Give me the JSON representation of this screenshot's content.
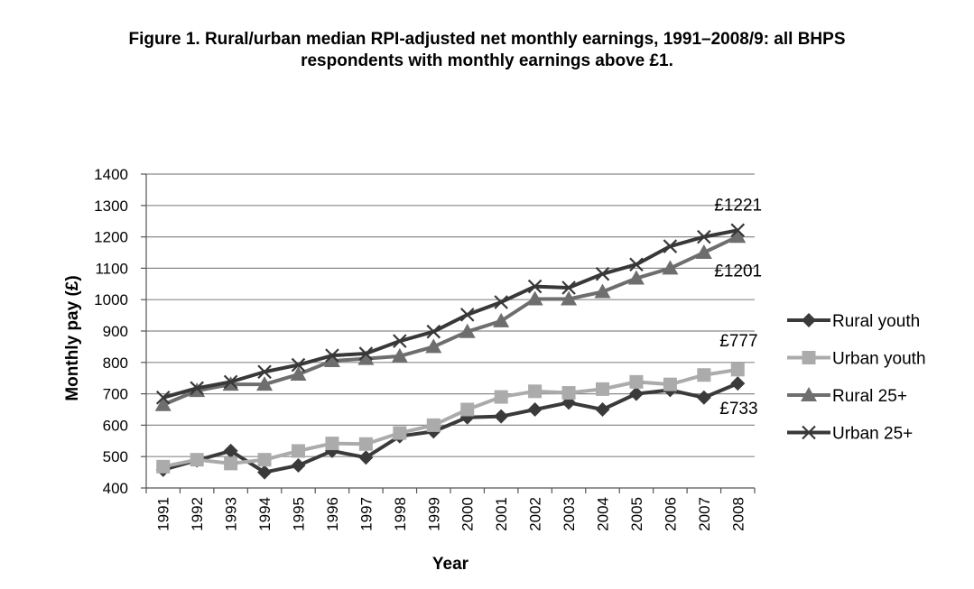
{
  "figure": {
    "title_line1": "Figure 1. Rural/urban median RPI-adjusted net monthly earnings, 1991–2008/9: all BHPS",
    "title_line2": "respondents with monthly earnings above £1."
  },
  "chart_data": {
    "type": "line",
    "xlabel": "Year",
    "ylabel": "Monthly pay (£)",
    "ylim": [
      400,
      1400
    ],
    "yticks": [
      400,
      500,
      600,
      700,
      800,
      900,
      1000,
      1100,
      1200,
      1300,
      1400
    ],
    "categories": [
      "1991",
      "1992",
      "1993",
      "1994",
      "1995",
      "1996",
      "1997",
      "1998",
      "1999",
      "2000",
      "2001",
      "2002",
      "2003",
      "2004",
      "2005",
      "2006",
      "2007",
      "2008"
    ],
    "grid": "horizontal",
    "legend_position": "right",
    "series": [
      {
        "name": "Rural youth",
        "marker": "diamond",
        "color": "#3a3a3a",
        "values": [
          458,
          488,
          518,
          450,
          472,
          518,
          497,
          565,
          580,
          625,
          628,
          650,
          672,
          650,
          700,
          712,
          688,
          733
        ]
      },
      {
        "name": "Urban youth",
        "marker": "square",
        "color": "#ababab",
        "values": [
          468,
          490,
          478,
          490,
          518,
          542,
          540,
          575,
          600,
          650,
          690,
          708,
          703,
          715,
          738,
          730,
          760,
          777
        ]
      },
      {
        "name": "Rural 25+",
        "marker": "triangle",
        "color": "#6e6e6e",
        "values": [
          665,
          710,
          730,
          730,
          762,
          805,
          812,
          820,
          850,
          898,
          932,
          1002,
          1002,
          1025,
          1068,
          1100,
          1150,
          1201
        ]
      },
      {
        "name": "Urban 25+",
        "marker": "cross",
        "color": "#383838",
        "values": [
          688,
          718,
          738,
          770,
          792,
          822,
          828,
          868,
          898,
          952,
          992,
          1042,
          1038,
          1082,
          1112,
          1170,
          1200,
          1221
        ]
      }
    ],
    "annotations": [
      {
        "text": "£1221",
        "series": "Urban 25+",
        "category": "2008"
      },
      {
        "text": "£1201",
        "series": "Rural 25+",
        "category": "2008"
      },
      {
        "text": "£777",
        "series": "Urban youth",
        "category": "2008"
      },
      {
        "text": "£733",
        "series": "Rural youth",
        "category": "2008"
      }
    ]
  }
}
